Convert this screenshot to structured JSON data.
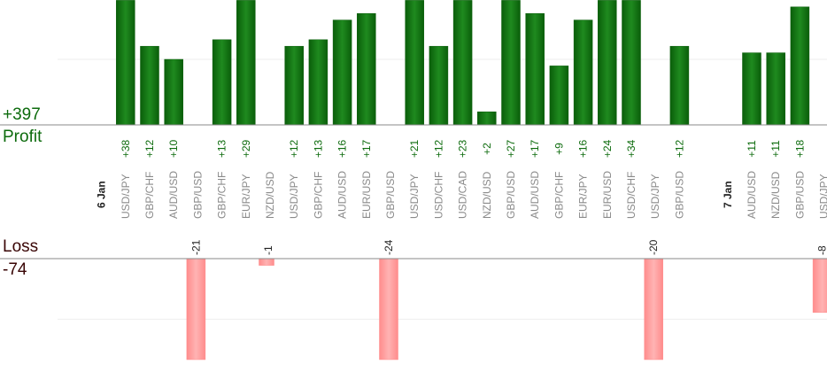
{
  "summary": {
    "profit_total": "+397",
    "profit_label": "Profit",
    "loss_label": "Loss",
    "loss_total": "-74"
  },
  "colors": {
    "profit_bar": "#0a5e0a",
    "profit_bar_light": "#1f8a1f",
    "profit_text": "#0d6b0d",
    "loss_bar": "#ffb3b3",
    "loss_bar_edge": "#ff8c8c",
    "loss_text": "#222222",
    "pair_text": "#8a8a8a",
    "date_text": "#222222",
    "axis": "#888888",
    "grid": "#eeeeee"
  },
  "chart_data": {
    "type": "bar",
    "dates": [
      {
        "label": "6 Jan",
        "slot": 0
      },
      {
        "label": "7 Jan",
        "slot": 26
      }
    ],
    "trades": [
      {
        "slot": 1,
        "pair": "USD/JPY",
        "value": 38,
        "label": "+38"
      },
      {
        "slot": 2,
        "pair": "GBP/CHF",
        "value": 12,
        "label": "+12"
      },
      {
        "slot": 3,
        "pair": "AUD/USD",
        "value": 10,
        "label": "+10"
      },
      {
        "slot": 4,
        "pair": "GBP/USD",
        "value": -21,
        "label": "-21"
      },
      {
        "slot": 5,
        "pair": "GBP/CHF",
        "value": 13,
        "label": "+13"
      },
      {
        "slot": 6,
        "pair": "EUR/JPY",
        "value": 29,
        "label": "+29"
      },
      {
        "slot": 7,
        "pair": "NZD/USD",
        "value": -1,
        "label": "-1"
      },
      {
        "slot": 8,
        "pair": "USD/JPY",
        "value": 12,
        "label": "+12"
      },
      {
        "slot": 9,
        "pair": "GBP/CHF",
        "value": 13,
        "label": "+13"
      },
      {
        "slot": 10,
        "pair": "AUD/USD",
        "value": 16,
        "label": "+16"
      },
      {
        "slot": 11,
        "pair": "EUR/USD",
        "value": 17,
        "label": "+17"
      },
      {
        "slot": 12,
        "pair": "GBP/USD",
        "value": -24,
        "label": "-24"
      },
      {
        "slot": 13,
        "pair": "USD/JPY",
        "value": 21,
        "label": "+21"
      },
      {
        "slot": 14,
        "pair": "USD/CHF",
        "value": 12,
        "label": "+12"
      },
      {
        "slot": 15,
        "pair": "USD/CAD",
        "value": 23,
        "label": "+23"
      },
      {
        "slot": 16,
        "pair": "NZD/USD",
        "value": 2,
        "label": "+2"
      },
      {
        "slot": 17,
        "pair": "GBP/USD",
        "value": 27,
        "label": "+27"
      },
      {
        "slot": 18,
        "pair": "AUD/USD",
        "value": 17,
        "label": "+17"
      },
      {
        "slot": 19,
        "pair": "GBP/CHF",
        "value": 9,
        "label": "+9"
      },
      {
        "slot": 20,
        "pair": "EUR/JPY",
        "value": 16,
        "label": "+16"
      },
      {
        "slot": 21,
        "pair": "EUR/USD",
        "value": 24,
        "label": "+24"
      },
      {
        "slot": 22,
        "pair": "USD/CHF",
        "value": 34,
        "label": "+34"
      },
      {
        "slot": 23,
        "pair": "USD/JPY",
        "value": -20,
        "label": "-20"
      },
      {
        "slot": 24,
        "pair": "GBP/USD",
        "value": 12,
        "label": "+12"
      },
      {
        "slot": 27,
        "pair": "AUD/USD",
        "value": 11,
        "label": "+11"
      },
      {
        "slot": 28,
        "pair": "NZD/USD",
        "value": 11,
        "label": "+11"
      },
      {
        "slot": 29,
        "pair": "GBP/USD",
        "value": 18,
        "label": "+18"
      },
      {
        "slot": 30,
        "pair": "USD/JPY",
        "value": -8,
        "label": "-8"
      }
    ],
    "profit_axis_max": 19,
    "loss_axis_max": 15,
    "grid": true
  }
}
